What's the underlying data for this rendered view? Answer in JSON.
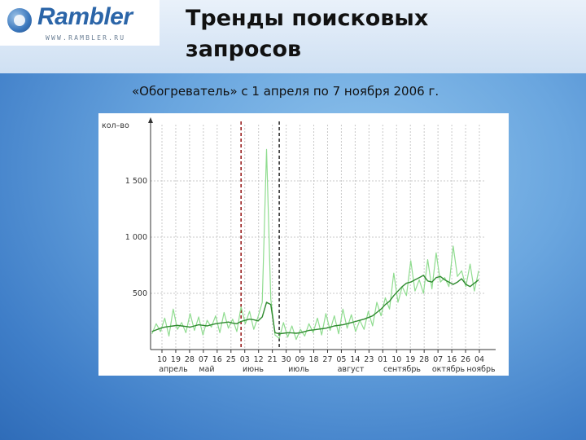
{
  "logo": {
    "name": "Rambler",
    "url": "WWW.RAMBLER.RU"
  },
  "title": "Тренды поисковых запросов",
  "subtitle": "«Обогреватель» с 1 апреля по 7 ноября 2006 г.",
  "chart_data": {
    "type": "line",
    "ylabel": "кол–во",
    "xlabel": "",
    "ylim": [
      0,
      2000
    ],
    "yticks": [
      500,
      1000,
      1500
    ],
    "grid": true,
    "x_tick_labels": [
      "10",
      "19",
      "28",
      "07",
      "16",
      "25",
      "03",
      "12",
      "21",
      "30",
      "09",
      "18",
      "27",
      "05",
      "14",
      "23",
      "01",
      "10",
      "19",
      "28",
      "07",
      "16",
      "26",
      "04"
    ],
    "month_labels": [
      "апрель",
      "май",
      "июнь",
      "июль",
      "август",
      "сентябрь",
      "октябрь",
      "ноябрь"
    ],
    "series": [
      {
        "name": "",
        "color": "#8fdc8f",
        "x": [
          1,
          4,
          7,
          10,
          13,
          16,
          19,
          22,
          25,
          28,
          31,
          34,
          37,
          40,
          43,
          46,
          49,
          52,
          55,
          58,
          61,
          64,
          67,
          70,
          73,
          76,
          79,
          82,
          85,
          88,
          91,
          94,
          97,
          100,
          103,
          106,
          109,
          112,
          115,
          118,
          121,
          124,
          127,
          130,
          133,
          136,
          139,
          142,
          145,
          148,
          151,
          154,
          157,
          160,
          163,
          166,
          169,
          172,
          175,
          178,
          181,
          184,
          187,
          190,
          193,
          196,
          199,
          202,
          205,
          208,
          211,
          214,
          217,
          220,
          223,
          226,
          229,
          232
        ],
        "values": [
          140,
          230,
          160,
          280,
          120,
          360,
          180,
          240,
          150,
          320,
          170,
          290,
          130,
          260,
          200,
          300,
          150,
          330,
          190,
          270,
          160,
          380,
          230,
          340,
          180,
          290,
          420,
          1780,
          450,
          130,
          100,
          240,
          110,
          210,
          90,
          180,
          120,
          230,
          150,
          280,
          130,
          320,
          170,
          300,
          140,
          360,
          190,
          310,
          160,
          260,
          180,
          340,
          210,
          420,
          300,
          460,
          360,
          680,
          420,
          560,
          480,
          790,
          520,
          620,
          500,
          800,
          540,
          860,
          600,
          640,
          560,
          920,
          650,
          700,
          560,
          760,
          520,
          700
        ]
      },
      {
        "name": "",
        "color": "#2f8a2f",
        "x": [
          1,
          4,
          7,
          10,
          13,
          16,
          19,
          22,
          25,
          28,
          31,
          34,
          37,
          40,
          43,
          46,
          49,
          52,
          55,
          58,
          61,
          64,
          67,
          70,
          73,
          76,
          79,
          82,
          85,
          88,
          91,
          94,
          97,
          100,
          103,
          106,
          109,
          112,
          115,
          118,
          121,
          124,
          127,
          130,
          133,
          136,
          139,
          142,
          145,
          148,
          151,
          154,
          157,
          160,
          163,
          166,
          169,
          172,
          175,
          178,
          181,
          184,
          187,
          190,
          193,
          196,
          199,
          202,
          205,
          208,
          211,
          214,
          217,
          220,
          223,
          226,
          229,
          232
        ],
        "values": [
          160,
          175,
          190,
          200,
          205,
          210,
          215,
          210,
          205,
          200,
          210,
          220,
          215,
          210,
          220,
          230,
          235,
          240,
          245,
          235,
          230,
          250,
          260,
          270,
          265,
          255,
          290,
          420,
          400,
          150,
          140,
          145,
          150,
          148,
          145,
          150,
          160,
          170,
          175,
          180,
          185,
          190,
          200,
          210,
          215,
          220,
          230,
          240,
          250,
          260,
          270,
          285,
          300,
          330,
          360,
          400,
          430,
          480,
          520,
          560,
          590,
          600,
          620,
          640,
          660,
          610,
          600,
          640,
          650,
          620,
          600,
          580,
          600,
          630,
          580,
          560,
          590,
          620
        ]
      }
    ],
    "markers": [
      {
        "x": 64,
        "label": "",
        "style": "red-dashed"
      },
      {
        "x": 91,
        "label": "",
        "style": "black-dashed"
      }
    ],
    "xlim": [
      0,
      236
    ]
  }
}
